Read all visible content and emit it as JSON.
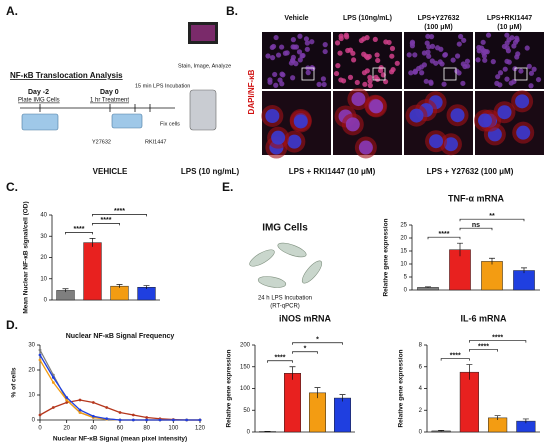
{
  "letters": [
    "A.",
    "B.",
    "C.",
    "D.",
    "E."
  ],
  "panel_a": {
    "title": "NF-κB Translocation Analysis",
    "day1": "Day -2",
    "step1": "Plate IMG Cells",
    "day2": "Day 0",
    "step2": "1 hr Treatment",
    "step3": "15 min LPS Incubation",
    "step4": "Stain, Image, Analyze",
    "step5": "Fix cells",
    "drug1": "Y27632",
    "drug2": "RKI1447"
  },
  "panel_b": {
    "stain": "DAPI/NF-κB",
    "columns": [
      [
        "Vehicle"
      ],
      [
        "LPS (10ng/mL)"
      ],
      [
        "LPS+Y27632",
        "(100 μM)"
      ],
      [
        "LPS+RKI1447",
        "(10 μM)"
      ]
    ]
  },
  "legend": [
    {
      "name": "VEHICLE",
      "color": "#7f7f7f"
    },
    {
      "name": "LPS (10 ng/mL)",
      "color": "#e8211f"
    },
    {
      "name": "LPS + RKI1447 (10 μM)",
      "color": "#f39c12"
    },
    {
      "name": "LPS + Y27632 (100 μM)",
      "color": "#1f3fe0"
    }
  ],
  "panel_e": {
    "cells": "IMG Cells",
    "note1": "24 h LPS Incubation",
    "note2": "(RT-qPCR)"
  },
  "chart_data": [
    {
      "type": "bar",
      "ylabel": "Mean Nuclear NF-κB signal/cell (OD)",
      "categories": [
        null,
        null,
        null,
        null
      ],
      "values": [
        4.5,
        27,
        6.5,
        6
      ],
      "errors": [
        0.8,
        2,
        0.8,
        0.8
      ],
      "colors": [
        "#7f7f7f",
        "#e8211f",
        "#f39c12",
        "#1f3fe0"
      ],
      "ylim": [
        0,
        40
      ],
      "yticks": [
        0,
        10,
        20,
        30,
        40
      ],
      "brackets": [
        {
          "label": "****",
          "from": 0,
          "to": 1
        },
        {
          "label": "****",
          "from": 1,
          "to": 2
        },
        {
          "label": "****",
          "from": 1,
          "to": 3
        }
      ]
    },
    {
      "type": "line",
      "title": "Nuclear NF-κB Signal Frequency",
      "xlabel": "Nuclear NF-κB Signal (mean pixel intensity)",
      "ylabel": "% of cells",
      "x": [
        0,
        10,
        20,
        30,
        40,
        50,
        60,
        70,
        80,
        90,
        100,
        110,
        120
      ],
      "series": [
        {
          "name": "VEHICLE",
          "color": "#7f7f7f",
          "values": [
            28,
            18,
            8,
            3,
            1,
            0.5,
            0,
            0,
            0,
            0,
            0,
            0,
            0
          ]
        },
        {
          "name": "LPS (10 ng/mL)",
          "color": "#b5361c",
          "values": [
            2,
            5,
            7,
            8,
            7,
            5,
            3,
            2,
            1,
            0.5,
            0.2,
            0,
            0
          ]
        },
        {
          "name": "LPS + RKI1447 (10 μM)",
          "color": "#f39c12",
          "values": [
            24,
            15,
            8,
            3,
            1,
            0.3,
            0,
            0,
            0,
            0,
            0,
            0,
            0
          ]
        },
        {
          "name": "LPS + Y27632 (100 μM)",
          "color": "#1f3fe0",
          "values": [
            26,
            17,
            9,
            4,
            1.5,
            0.5,
            0,
            0,
            0,
            0,
            0,
            0,
            0
          ]
        }
      ],
      "xlim": [
        0,
        120
      ],
      "xticks": [
        0,
        20,
        40,
        60,
        80,
        100,
        120
      ],
      "ylim": [
        0,
        30
      ],
      "yticks": [
        0,
        10,
        20,
        30
      ]
    },
    {
      "type": "bar",
      "title": "TNF-α mRNA",
      "ylabel": "Relative gene expression",
      "categories": [
        null,
        null,
        null,
        null
      ],
      "values": [
        1,
        15.5,
        11,
        7.5
      ],
      "errors": [
        0.2,
        2.5,
        1.2,
        1
      ],
      "colors": [
        "#7f7f7f",
        "#e8211f",
        "#f39c12",
        "#1f3fe0"
      ],
      "ylim": [
        0,
        25
      ],
      "yticks": [
        0,
        5,
        10,
        15,
        20,
        25
      ],
      "brackets": [
        {
          "label": "****",
          "from": 0,
          "to": 1
        },
        {
          "label": "ns",
          "from": 1,
          "to": 2
        },
        {
          "label": "**",
          "from": 1,
          "to": 3
        }
      ]
    },
    {
      "type": "bar",
      "title": "iNOS mRNA",
      "ylabel": "Relative gene expression",
      "categories": [
        null,
        null,
        null,
        null
      ],
      "values": [
        1,
        135,
        90,
        78
      ],
      "errors": [
        0.5,
        15,
        12,
        8
      ],
      "colors": [
        "#7f7f7f",
        "#e8211f",
        "#f39c12",
        "#1f3fe0"
      ],
      "ylim": [
        0,
        200
      ],
      "yticks": [
        0,
        50,
        100,
        150,
        200
      ],
      "brackets": [
        {
          "label": "****",
          "from": 0,
          "to": 1
        },
        {
          "label": "*",
          "from": 1,
          "to": 2
        },
        {
          "label": "*",
          "from": 1,
          "to": 3
        }
      ]
    },
    {
      "type": "bar",
      "title": "IL-6 mRNA",
      "ylabel": "Relative gene expression",
      "categories": [
        null,
        null,
        null,
        null
      ],
      "values": [
        0.1,
        5.5,
        1.3,
        1.0
      ],
      "errors": [
        0.05,
        0.7,
        0.2,
        0.2
      ],
      "colors": [
        "#7f7f7f",
        "#e8211f",
        "#f39c12",
        "#1f3fe0"
      ],
      "ylim": [
        0,
        8
      ],
      "yticks": [
        0,
        2,
        4,
        6,
        8
      ],
      "brackets": [
        {
          "label": "****",
          "from": 0,
          "to": 1
        },
        {
          "label": "****",
          "from": 1,
          "to": 2
        },
        {
          "label": "****",
          "from": 1,
          "to": 3
        }
      ]
    }
  ]
}
